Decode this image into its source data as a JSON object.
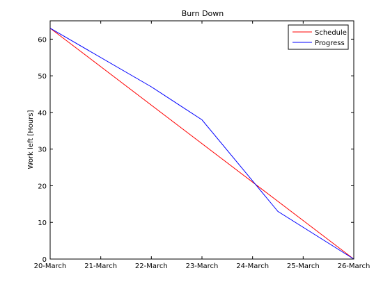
{
  "chart_data": {
    "type": "line",
    "title": "Burn Down",
    "xlabel": "",
    "ylabel": "Work left [Hours]",
    "x_tick_labels": [
      "20-March",
      "21-March",
      "22-March",
      "23-March",
      "24-March",
      "25-March",
      "26-March"
    ],
    "xlim": [
      0,
      6
    ],
    "ylim": [
      0,
      65
    ],
    "y_ticks": [
      0,
      10,
      20,
      30,
      40,
      50,
      60
    ],
    "grid": false,
    "legend_position": "top-right",
    "series": [
      {
        "name": "Schedule",
        "color": "#ff0000",
        "x": [
          0,
          6
        ],
        "y": [
          63,
          0
        ]
      },
      {
        "name": "Progress",
        "color": "#0000ff",
        "x": [
          0,
          2,
          3,
          4.5,
          6
        ],
        "y": [
          63,
          47,
          38,
          13,
          0
        ]
      }
    ]
  }
}
